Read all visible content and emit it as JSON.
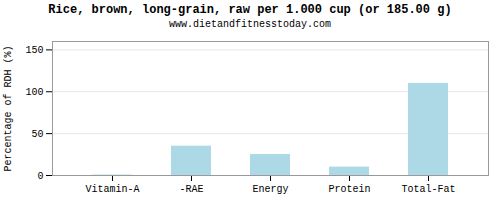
{
  "chart_data": {
    "type": "bar",
    "title": "Rice, brown, long-grain, raw per 1.000 cup (or 185.00 g)",
    "subtitle": "www.dietandfitnesstoday.com",
    "categories": [
      "Vitamin-A",
      "-RAE",
      "Energy",
      "Protein",
      "Total-Fat"
    ],
    "values": [
      0.5,
      35,
      25,
      10,
      110
    ],
    "color": "#add8e6",
    "ylabel": "Percentage of RDH (%)",
    "ylim": [
      0,
      160
    ],
    "yticks": [
      0,
      50,
      100,
      150
    ],
    "grid": true
  }
}
